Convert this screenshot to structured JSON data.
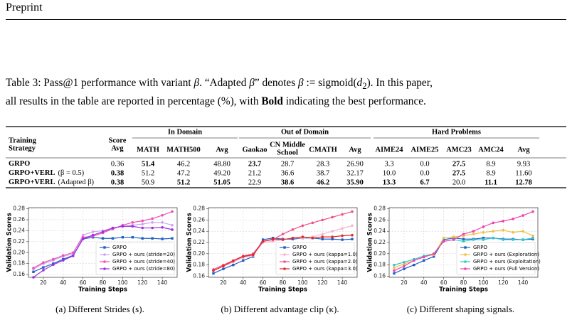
{
  "header": {
    "title": "Preprint"
  },
  "caption": {
    "lines": [
      [
        "Table 3: Pass@1 performance with variant ",
        "β",
        ". “Adapted ",
        "β",
        "” denotes ",
        "β",
        " := sigmoid(",
        "d",
        "2",
        "). In this paper,"
      ],
      [
        "all results in the table are reported in percentage (%), with ",
        "Bold",
        " indicating the best performance."
      ]
    ]
  },
  "table": {
    "groups": [
      "In Domain",
      "Out of Domain",
      "Hard Problems"
    ],
    "columns": [
      [
        "Training",
        "Strategy"
      ],
      [
        "Score",
        "Avg"
      ],
      [
        "MATH"
      ],
      [
        "MATH500"
      ],
      [
        "Avg"
      ],
      [
        "Gaokao"
      ],
      [
        "CN Middle",
        "School"
      ],
      [
        "CMATH"
      ],
      [
        "Avg"
      ],
      [
        "AIME24"
      ],
      [
        "AIME25"
      ],
      [
        "AMC23"
      ],
      [
        "AMC24"
      ],
      [
        "Avg"
      ]
    ],
    "rows": [
      {
        "strategy": "GRPO",
        "note": "",
        "cells": [
          "0.36",
          "51.4",
          "46.2",
          "48.80",
          "23.7",
          "28.7",
          "28.3",
          "26.90",
          "3.3",
          "0.0",
          "27.5",
          "8.9",
          "9.93"
        ],
        "bold": [
          1,
          4,
          10
        ]
      },
      {
        "strategy": "GRPO+VERL",
        "note": "(β = 0.5)",
        "cells": [
          "0.38",
          "51.2",
          "47.2",
          "49.20",
          "21.2",
          "36.6",
          "38.7",
          "32.17",
          "10.0",
          "0.0",
          "27.5",
          "8.9",
          "11.60"
        ],
        "bold": [
          0,
          10
        ]
      },
      {
        "strategy": "GRPO+VERL",
        "note": "(Adapted β)",
        "cells": [
          "0.38",
          "50.9",
          "51.2",
          "51.05",
          "22.9",
          "38.6",
          "46.2",
          "35.90",
          "13.3",
          "6.7",
          "20.0",
          "11.1",
          "12.78"
        ],
        "bold": [
          0,
          2,
          3,
          5,
          6,
          7,
          8,
          9,
          11,
          12
        ]
      }
    ]
  },
  "chart_data": [
    {
      "type": "line",
      "caption": "(a) Different Strides (s).",
      "xlabel": "Training Steps",
      "ylabel": "Validation Scores",
      "x": [
        10,
        20,
        30,
        40,
        50,
        60,
        70,
        80,
        90,
        100,
        110,
        120,
        130,
        140,
        150
      ],
      "xlim": [
        5,
        155
      ],
      "xticks": [
        20,
        40,
        60,
        80,
        100,
        120,
        140
      ],
      "ylim": [
        0.155,
        0.282
      ],
      "yticks": [
        0.16,
        0.18,
        {
          "value": 0.2,
          "label": "0.20"
        },
        0.22,
        0.24,
        0.26,
        0.28
      ],
      "grid": true,
      "legend": "lower right",
      "series": [
        {
          "name": "GRPO",
          "color": "#1f5fc8",
          "marker": "square",
          "values": [
            0.165,
            0.173,
            0.18,
            0.188,
            0.195,
            0.225,
            0.228,
            0.226,
            0.226,
            0.228,
            0.228,
            0.226,
            0.226,
            0.225,
            0.226
          ]
        },
        {
          "name": "GRPO + ours (stride=20)",
          "color": "#cba4f2",
          "marker": "circle",
          "values": [
            0.17,
            0.18,
            0.186,
            0.193,
            0.198,
            0.232,
            0.238,
            0.24,
            0.245,
            0.248,
            0.25,
            0.252,
            0.255,
            0.255,
            0.25
          ]
        },
        {
          "name": "GRPO + ours (stride=40)",
          "color": "#f050b4",
          "marker": "circle",
          "values": [
            0.172,
            0.182,
            0.188,
            0.195,
            0.2,
            0.228,
            0.23,
            0.236,
            0.243,
            0.25,
            0.255,
            0.258,
            0.262,
            0.268,
            0.275
          ]
        },
        {
          "name": "GRPO + ours (stride=80)",
          "color": "#9b30e0",
          "marker": "circle",
          "values": [
            0.155,
            0.168,
            0.178,
            0.186,
            0.194,
            0.225,
            0.232,
            0.238,
            0.245,
            0.248,
            0.248,
            0.245,
            0.245,
            0.246,
            0.242
          ]
        }
      ]
    },
    {
      "type": "line",
      "caption": "(b) Different advantage clip (κ).",
      "xlabel": "Training Steps",
      "ylabel": "Validation Scores",
      "x": [
        10,
        20,
        30,
        40,
        50,
        60,
        70,
        80,
        90,
        100,
        110,
        120,
        130,
        140,
        150
      ],
      "xlim": [
        5,
        155
      ],
      "xticks": [
        20,
        40,
        60,
        80,
        100,
        120,
        140
      ],
      "ylim": [
        0.158,
        0.282
      ],
      "yticks": [
        0.16,
        0.18,
        {
          "value": 0.2,
          "label": "0.20"
        },
        0.22,
        0.24,
        0.26,
        0.28
      ],
      "grid": true,
      "legend": "lower right",
      "series": [
        {
          "name": "GRPO",
          "color": "#1f5fc8",
          "marker": "square",
          "values": [
            0.165,
            0.173,
            0.18,
            0.188,
            0.195,
            0.225,
            0.228,
            0.226,
            0.226,
            0.228,
            0.228,
            0.226,
            0.226,
            0.225,
            0.226
          ]
        },
        {
          "name": "GRPO + ours (kappa=1.0)",
          "color": "#f7b4cc",
          "marker": "circle",
          "values": [
            0.17,
            0.178,
            0.185,
            0.193,
            0.197,
            0.22,
            0.222,
            0.225,
            0.228,
            0.228,
            0.23,
            0.235,
            0.24,
            0.245,
            0.25
          ]
        },
        {
          "name": "GRPO + ours (kappa=2.0)",
          "color": "#f0508c",
          "marker": "circle",
          "values": [
            0.172,
            0.18,
            0.188,
            0.196,
            0.2,
            0.222,
            0.225,
            0.235,
            0.243,
            0.25,
            0.255,
            0.26,
            0.265,
            0.27,
            0.275
          ]
        },
        {
          "name": "GRPO + ours (kappa=3.0)",
          "color": "#e02828",
          "marker": "circle",
          "values": [
            0.17,
            0.178,
            0.187,
            0.195,
            0.198,
            0.222,
            0.226,
            0.225,
            0.228,
            0.23,
            0.228,
            0.23,
            0.23,
            0.232,
            0.233
          ]
        }
      ]
    },
    {
      "type": "line",
      "caption": "(c) Different shaping signals.",
      "xlabel": "Training Steps",
      "ylabel": "Validation Scores",
      "x": [
        10,
        20,
        30,
        40,
        50,
        60,
        70,
        80,
        90,
        100,
        110,
        120,
        130,
        140,
        150
      ],
      "xlim": [
        5,
        155
      ],
      "xticks": [
        20,
        40,
        60,
        80,
        100,
        120,
        140
      ],
      "ylim": [
        0.158,
        0.282
      ],
      "yticks": [
        0.16,
        0.18,
        {
          "value": 0.2,
          "label": "0.20"
        },
        0.22,
        0.24,
        0.26,
        0.28
      ],
      "grid": true,
      "legend": "lower right",
      "series": [
        {
          "name": "GRPO",
          "color": "#1f5fc8",
          "marker": "square",
          "values": [
            0.165,
            0.173,
            0.18,
            0.188,
            0.195,
            0.225,
            0.228,
            0.226,
            0.226,
            0.228,
            0.228,
            0.226,
            0.226,
            0.225,
            0.226
          ]
        },
        {
          "name": "GRPO + ours (Exploration)",
          "color": "#f0c040",
          "marker": "circle",
          "values": [
            0.175,
            0.182,
            0.188,
            0.195,
            0.198,
            0.228,
            0.23,
            0.232,
            0.235,
            0.238,
            0.24,
            0.242,
            0.238,
            0.24,
            0.232
          ]
        },
        {
          "name": "GRPO + ours (Exploitation)",
          "color": "#30c8c8",
          "marker": "circle",
          "values": [
            0.18,
            0.185,
            0.19,
            0.196,
            0.2,
            0.222,
            0.225,
            0.222,
            0.225,
            0.225,
            0.228,
            0.225,
            0.225,
            0.225,
            0.228
          ]
        },
        {
          "name": "GRPO + ours (Full Version)",
          "color": "#f040b4",
          "marker": "circle",
          "values": [
            0.17,
            0.178,
            0.188,
            0.194,
            0.2,
            0.222,
            0.225,
            0.235,
            0.24,
            0.248,
            0.255,
            0.258,
            0.262,
            0.268,
            0.275
          ]
        }
      ]
    }
  ]
}
